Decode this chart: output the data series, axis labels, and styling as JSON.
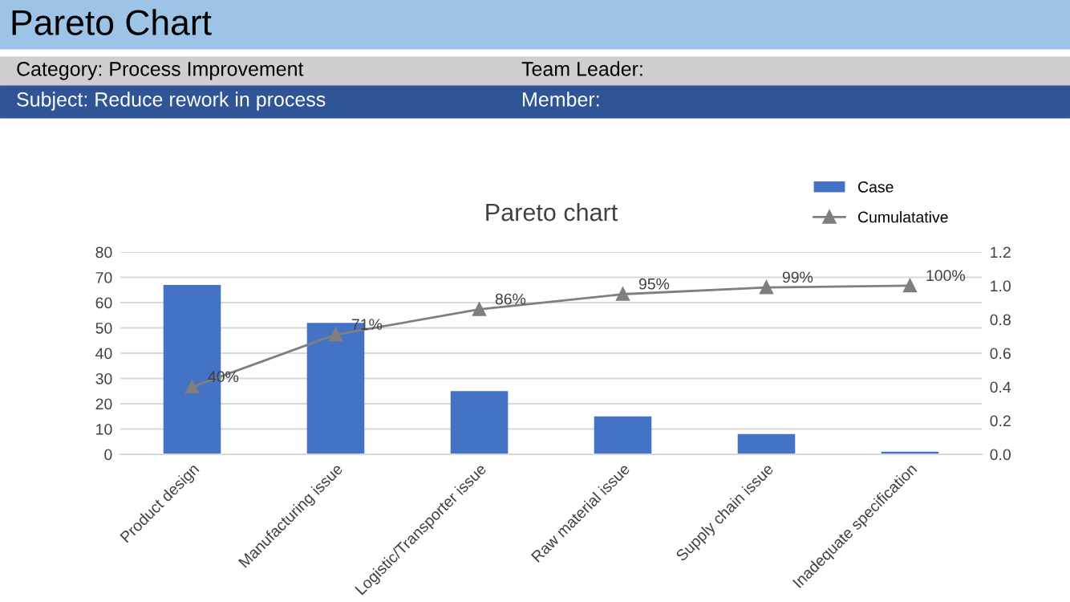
{
  "chart_data": {
    "type": "bar",
    "title": "Pareto chart",
    "annotations": [
      "Pareto Chart",
      "Category: Process Improvement",
      "Team Leader:",
      "Subject: Reduce rework in process",
      "Member:"
    ],
    "categories": [
      "Product design",
      "Manufacturing issue",
      "Logistic/Transporter issue",
      "Raw material issue",
      "Supply chain issue",
      "Inadequate specification"
    ],
    "series": [
      {
        "name": "Case",
        "color": "#4472c4",
        "values": [
          67,
          52,
          25,
          15,
          8,
          1
        ]
      },
      {
        "name": "Cumulatative",
        "type": "line",
        "axis": "y2",
        "color": "#7f7f7f",
        "marker": "triangle",
        "values": [
          0.4,
          0.71,
          0.86,
          0.95,
          0.99,
          1.0
        ],
        "value_labels": [
          "40%",
          "71%",
          "86%",
          "95%",
          "99%",
          "100%"
        ]
      }
    ],
    "ylim": [
      0,
      80
    ],
    "yticks": [
      0,
      10,
      20,
      30,
      40,
      50,
      60,
      70,
      80
    ],
    "y2lim": [
      0,
      1.2
    ],
    "y2ticks": [
      {
        "value": 0,
        "label": "0.0"
      },
      {
        "value": 0.2,
        "label": "0.2"
      },
      {
        "value": 0.4,
        "label": "0.4"
      },
      {
        "value": 0.6,
        "label": "0.6"
      },
      {
        "value": 0.8,
        "label": "0.8"
      },
      {
        "value": 1.0,
        "label": "1.0"
      },
      {
        "value": 1.2,
        "label": "1.2"
      }
    ],
    "grid": "y",
    "legend": "top right"
  }
}
